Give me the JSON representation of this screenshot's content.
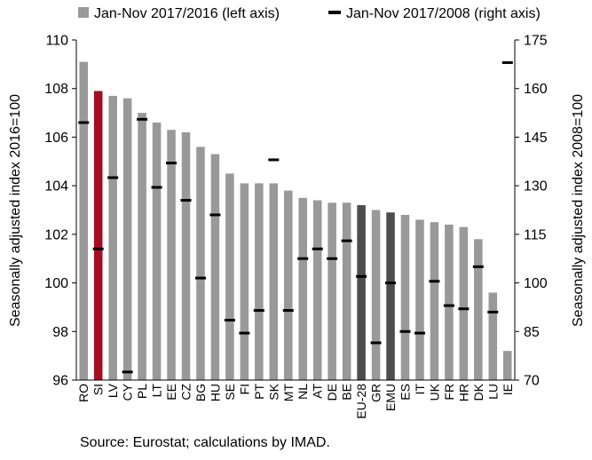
{
  "chart_data": {
    "type": "bar",
    "categories": [
      "RO",
      "SI",
      "LV",
      "CY",
      "PL",
      "LT",
      "EE",
      "CZ",
      "BG",
      "HU",
      "SE",
      "FI",
      "PT",
      "SK",
      "MT",
      "NL",
      "AT",
      "DE",
      "BE",
      "EU-28",
      "GR",
      "EMU",
      "ES",
      "IT",
      "UK",
      "FR",
      "HR",
      "DK",
      "LU",
      "IE"
    ],
    "series": [
      {
        "name": "Jan-Nov 2017/2016 (left axis)",
        "axis": "left",
        "values": [
          109.1,
          107.9,
          107.7,
          107.6,
          107.0,
          106.6,
          106.3,
          106.2,
          105.6,
          105.3,
          104.5,
          104.1,
          104.1,
          104.1,
          103.8,
          103.5,
          103.4,
          103.3,
          103.3,
          103.2,
          103.0,
          102.9,
          102.8,
          102.6,
          102.5,
          102.4,
          102.3,
          101.8,
          99.6,
          97.2
        ],
        "colors": {
          "default": "#999999",
          "SI": "#a50e22",
          "EU-28": "#4d4d4d",
          "EMU": "#4d4d4d"
        }
      },
      {
        "name": "Jan-Nov 2017/2008 (right axis)",
        "axis": "right",
        "values": [
          149.5,
          110.5,
          132.5,
          72.5,
          150.5,
          129.5,
          137,
          125.5,
          101.5,
          121,
          88.5,
          84.5,
          91.5,
          138,
          91.5,
          107.5,
          110.5,
          107.5,
          113,
          102,
          81.5,
          100,
          85,
          84.5,
          100.5,
          93,
          92,
          105,
          91,
          168
        ],
        "color": "#000000"
      }
    ],
    "left_axis": {
      "label": "Seasonally adjusted index 2016=100",
      "ylim": [
        96,
        110
      ],
      "ticks": [
        96,
        98,
        100,
        102,
        104,
        106,
        108,
        110
      ]
    },
    "right_axis": {
      "label": "Seasonally adjusted index 2008=100",
      "ylim": [
        70,
        175
      ],
      "ticks": [
        70,
        85,
        100,
        115,
        130,
        145,
        160,
        175
      ]
    },
    "legend_position": "top",
    "grid": false
  },
  "source": "Source: Eurostat; calculations by IMAD."
}
